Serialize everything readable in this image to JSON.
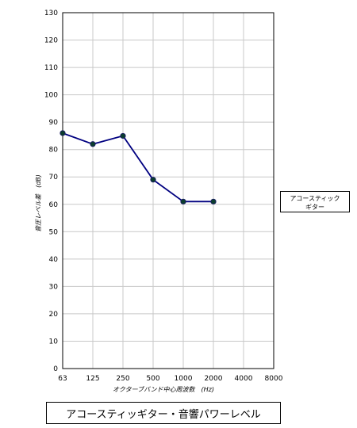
{
  "chart_data": {
    "type": "line",
    "title": "アコースティッギター・音響パワーレベル",
    "xlabel": "オクターブバンド中心周波数　(Hz)",
    "ylabel": "音圧レベル差　(dB)",
    "categories": [
      "63",
      "125",
      "250",
      "500",
      "1000",
      "2000",
      "4000",
      "8000"
    ],
    "ylim": [
      0,
      130
    ],
    "yticks": [
      0,
      10,
      20,
      30,
      40,
      50,
      60,
      70,
      80,
      90,
      100,
      110,
      120,
      130
    ],
    "grid": true,
    "legend_position": "right",
    "series": [
      {
        "name": "アコースティック\nギター",
        "values": [
          86,
          82,
          85,
          69,
          61,
          61,
          null,
          null
        ],
        "color": "#000080",
        "marker_color": "#0b3d2e"
      }
    ]
  }
}
